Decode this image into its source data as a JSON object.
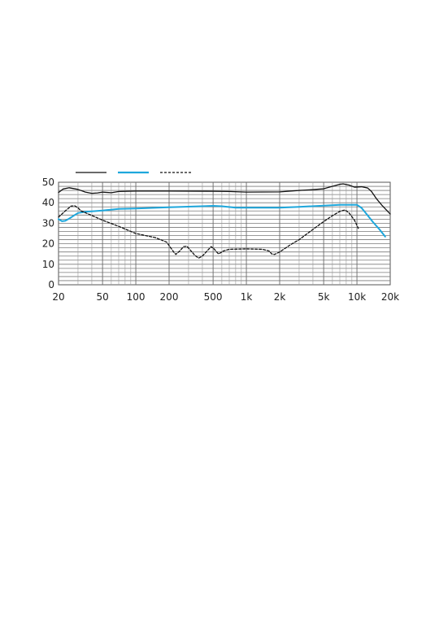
{
  "chart_data": {
    "type": "line",
    "title": "",
    "xlabel": "",
    "ylabel": "",
    "x_scale": "log",
    "xlim": [
      20,
      20000
    ],
    "ylim": [
      0,
      50
    ],
    "grid": true,
    "legend_placement": "top-left",
    "y_ticks": [
      "0",
      "10",
      "20",
      "30",
      "40",
      "50"
    ],
    "x_ticks": [
      {
        "value": 20,
        "label": "20"
      },
      {
        "value": 50,
        "label": "50"
      },
      {
        "value": 100,
        "label": "100"
      },
      {
        "value": 200,
        "label": "200"
      },
      {
        "value": 500,
        "label": "500"
      },
      {
        "value": 1000,
        "label": "1k"
      },
      {
        "value": 2000,
        "label": "2k"
      },
      {
        "value": 5000,
        "label": "5k"
      },
      {
        "value": 10000,
        "label": "10k"
      },
      {
        "value": 20000,
        "label": "20k"
      }
    ],
    "series": [
      {
        "color": "#111111",
        "style": "solid",
        "points": [
          [
            20,
            45
          ],
          [
            22,
            46.7
          ],
          [
            25,
            47.3
          ],
          [
            30,
            46.5
          ],
          [
            35,
            45.2
          ],
          [
            40,
            44.6
          ],
          [
            45,
            44.8
          ],
          [
            50,
            45.2
          ],
          [
            60,
            44.9
          ],
          [
            70,
            45.5
          ],
          [
            100,
            45.7
          ],
          [
            200,
            45.7
          ],
          [
            500,
            45.6
          ],
          [
            700,
            45.5
          ],
          [
            1000,
            45.2
          ],
          [
            2000,
            45.3
          ],
          [
            3000,
            46.0
          ],
          [
            4000,
            46.4
          ],
          [
            5000,
            46.8
          ],
          [
            6000,
            48.0
          ],
          [
            7000,
            49.0
          ],
          [
            7500,
            49.2
          ],
          [
            8500,
            48.6
          ],
          [
            9500,
            47.6
          ],
          [
            11000,
            47.8
          ],
          [
            12500,
            47.2
          ],
          [
            13500,
            45.6
          ],
          [
            15000,
            42
          ],
          [
            17000,
            38.5
          ],
          [
            20000,
            34.5
          ]
        ]
      },
      {
        "color": "#1ea7dc",
        "style": "solid",
        "points": [
          [
            20,
            32
          ],
          [
            21.5,
            31
          ],
          [
            23,
            31.2
          ],
          [
            25,
            32.3
          ],
          [
            28,
            34
          ],
          [
            30,
            35
          ],
          [
            35,
            35.6
          ],
          [
            40,
            35.8
          ],
          [
            50,
            36.2
          ],
          [
            70,
            37
          ],
          [
            100,
            37.2
          ],
          [
            200,
            37.8
          ],
          [
            500,
            38.5
          ],
          [
            600,
            38.3
          ],
          [
            800,
            37.6
          ],
          [
            1000,
            37.6
          ],
          [
            2000,
            37.6
          ],
          [
            3000,
            38
          ],
          [
            5000,
            38.6
          ],
          [
            7000,
            39
          ],
          [
            9000,
            39
          ],
          [
            10000,
            39
          ],
          [
            11000,
            37.5
          ],
          [
            12000,
            35
          ],
          [
            14000,
            30.5
          ],
          [
            16000,
            27
          ],
          [
            18000,
            23.5
          ]
        ]
      },
      {
        "color": "#111111",
        "style": "dashed",
        "points": [
          [
            20,
            33
          ],
          [
            23,
            36
          ],
          [
            26,
            38.4
          ],
          [
            28,
            38.5
          ],
          [
            30,
            37.5
          ],
          [
            32,
            36
          ],
          [
            40,
            33.8
          ],
          [
            50,
            31.5
          ],
          [
            70,
            28.5
          ],
          [
            100,
            25
          ],
          [
            150,
            23
          ],
          [
            190,
            20.8
          ],
          [
            220,
            16
          ],
          [
            230,
            14.8
          ],
          [
            250,
            16.5
          ],
          [
            270,
            18.6
          ],
          [
            290,
            18.8
          ],
          [
            310,
            17
          ],
          [
            340,
            14.5
          ],
          [
            370,
            13
          ],
          [
            400,
            14
          ],
          [
            450,
            17
          ],
          [
            480,
            18.6
          ],
          [
            510,
            17.5
          ],
          [
            560,
            15
          ],
          [
            620,
            16.5
          ],
          [
            700,
            17.3
          ],
          [
            1000,
            17.5
          ],
          [
            1400,
            17.3
          ],
          [
            1600,
            16.5
          ],
          [
            1700,
            15
          ],
          [
            1800,
            14.8
          ],
          [
            2000,
            16
          ],
          [
            2500,
            19.5
          ],
          [
            3000,
            22
          ],
          [
            4000,
            27
          ],
          [
            5000,
            30.8
          ],
          [
            6000,
            33.7
          ],
          [
            7000,
            35.8
          ],
          [
            7800,
            36.5
          ],
          [
            8500,
            35
          ],
          [
            9500,
            31.5
          ],
          [
            10300,
            27.5
          ]
        ]
      }
    ]
  }
}
